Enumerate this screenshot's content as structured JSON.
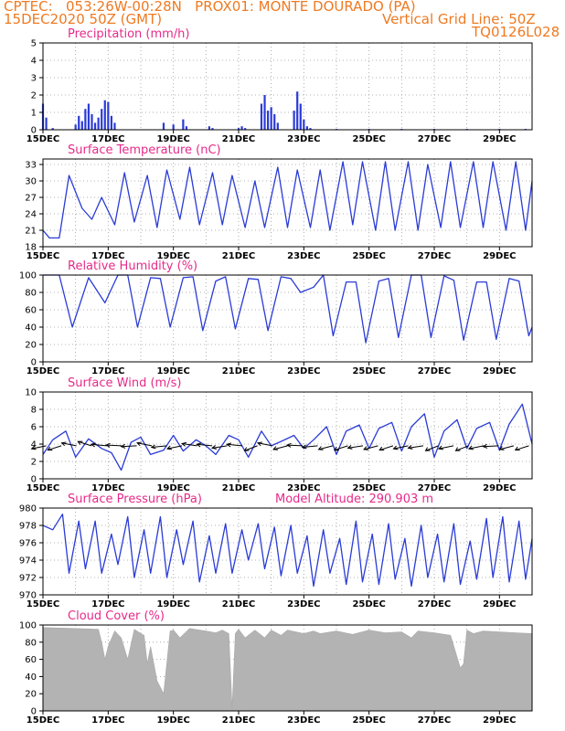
{
  "header": {
    "line1": "CPTEC:   053:26W-00:28N   PROX01: MONTE DOURADO (PA)",
    "line2": "15DEC2020 50Z (GMT)",
    "grid_note": "Vertical Grid Line: 50Z",
    "code": "TQ0126L028"
  },
  "colors": {
    "line": "#2a3bd6",
    "title": "#e62a8a",
    "header": "#ee7a22",
    "cloud": "#b3b3b3"
  },
  "chart_data": [
    {
      "id": "precip",
      "type": "bar",
      "title": "Precipitation (mm/h)",
      "ylim": [
        0,
        5
      ],
      "yticks": [
        0,
        1,
        2,
        3,
        4,
        5
      ],
      "x_labels": [
        "15DEC",
        "17DEC",
        "19DEC",
        "21DEC",
        "23DEC",
        "25DEC",
        "27DEC",
        "29DEC"
      ],
      "x": [
        15.0,
        15.1,
        15.3,
        16.0,
        16.1,
        16.2,
        16.3,
        16.4,
        16.5,
        16.6,
        16.7,
        16.8,
        16.9,
        17.0,
        17.1,
        17.2,
        18.7,
        19.0,
        19.3,
        19.4,
        20.1,
        20.2,
        21.0,
        21.1,
        21.2,
        21.7,
        21.8,
        21.9,
        22.0,
        22.1,
        22.2,
        22.7,
        22.8,
        22.9,
        23.0,
        23.1,
        23.2,
        24.0,
        25.0,
        26.0,
        27.0,
        28.0,
        29.0,
        29.8
      ],
      "values": [
        1.5,
        0.7,
        0.1,
        0.3,
        0.8,
        0.5,
        1.2,
        1.5,
        0.9,
        0.4,
        0.7,
        1.2,
        1.7,
        1.6,
        0.8,
        0.4,
        0.4,
        0.3,
        0.6,
        0.2,
        0.2,
        0.1,
        0.1,
        0.2,
        0.1,
        1.5,
        2.0,
        1.1,
        1.3,
        0.9,
        0.4,
        1.1,
        2.2,
        1.5,
        0.6,
        0.2,
        0.1,
        0.05,
        0.05,
        0.05,
        0.05,
        0.05,
        0.05,
        0.05
      ]
    },
    {
      "id": "temp",
      "type": "line",
      "title": "Surface Temperature (nC)",
      "ylim": [
        18,
        34
      ],
      "yticks": [
        18,
        21,
        24,
        27,
        30,
        33
      ],
      "x_labels": [
        "15DEC",
        "17DEC",
        "19DEC",
        "21DEC",
        "23DEC",
        "25DEC",
        "27DEC",
        "29DEC"
      ],
      "x": [
        15.0,
        15.2,
        15.5,
        15.8,
        16.2,
        16.5,
        16.8,
        17.2,
        17.5,
        17.8,
        18.2,
        18.5,
        18.8,
        19.2,
        19.5,
        19.8,
        20.2,
        20.5,
        20.8,
        21.2,
        21.5,
        21.8,
        22.2,
        22.5,
        22.8,
        23.2,
        23.5,
        23.8,
        24.2,
        24.5,
        24.8,
        25.2,
        25.5,
        25.8,
        26.2,
        26.5,
        26.8,
        27.2,
        27.5,
        27.8,
        28.2,
        28.5,
        28.8,
        29.2,
        29.5,
        29.8,
        30.0
      ],
      "values": [
        21,
        19.6,
        19.6,
        31,
        25,
        23,
        27,
        22,
        31.5,
        22.5,
        31,
        21.5,
        32,
        23,
        32.5,
        22,
        31.5,
        22,
        31,
        21.5,
        30,
        21.5,
        32.5,
        21.5,
        32,
        21.5,
        32,
        21,
        33.5,
        22,
        33.5,
        21,
        33.5,
        21,
        33.5,
        21,
        33,
        21.5,
        33.5,
        21.5,
        33.5,
        21.5,
        33.5,
        21,
        33.5,
        21,
        30
      ]
    },
    {
      "id": "rh",
      "type": "line",
      "title": "Relative Humidity (%)",
      "ylim": [
        0,
        100
      ],
      "yticks": [
        0,
        20,
        40,
        60,
        80,
        100
      ],
      "x_labels": [
        "15DEC",
        "17DEC",
        "19DEC",
        "21DEC",
        "23DEC",
        "25DEC",
        "27DEC",
        "29DEC"
      ],
      "x": [
        15.0,
        15.5,
        15.9,
        16.4,
        16.9,
        17.3,
        17.6,
        17.9,
        18.3,
        18.6,
        18.9,
        19.3,
        19.6,
        19.9,
        20.3,
        20.6,
        20.9,
        21.3,
        21.6,
        21.9,
        22.3,
        22.6,
        22.9,
        23.3,
        23.6,
        23.9,
        24.3,
        24.6,
        24.9,
        25.3,
        25.6,
        25.9,
        26.3,
        26.6,
        26.9,
        27.3,
        27.6,
        27.9,
        28.3,
        28.6,
        28.9,
        29.3,
        29.6,
        29.9,
        30.0
      ],
      "values": [
        100,
        100,
        40,
        97,
        68,
        100,
        100,
        40,
        97,
        96,
        40,
        97,
        98,
        36,
        93,
        98,
        38,
        96,
        95,
        36,
        98,
        96,
        80,
        86,
        100,
        30,
        92,
        92,
        22,
        93,
        96,
        28,
        100,
        100,
        28,
        99,
        94,
        25,
        92,
        92,
        26,
        96,
        93,
        30,
        40
      ]
    },
    {
      "id": "wind",
      "type": "line",
      "title": "Surface Wind (m/s)",
      "ylim": [
        0,
        10
      ],
      "yticks": [
        0,
        2,
        4,
        6,
        8,
        10
      ],
      "x_labels": [
        "15DEC",
        "17DEC",
        "19DEC",
        "21DEC",
        "23DEC",
        "25DEC",
        "27DEC",
        "29DEC"
      ],
      "x": [
        15.0,
        15.3,
        15.7,
        16.0,
        16.4,
        16.8,
        17.1,
        17.4,
        17.7,
        18.0,
        18.3,
        18.7,
        19.0,
        19.3,
        19.7,
        20.0,
        20.3,
        20.7,
        21.0,
        21.3,
        21.7,
        22.0,
        22.3,
        22.7,
        23.0,
        23.3,
        23.7,
        24.0,
        24.3,
        24.7,
        25.0,
        25.3,
        25.7,
        26.0,
        26.3,
        26.7,
        27.0,
        27.3,
        27.7,
        28.0,
        28.3,
        28.7,
        29.0,
        29.3,
        29.7,
        30.0
      ],
      "values": [
        2.8,
        4.5,
        5.5,
        2.5,
        4.6,
        3.5,
        3.0,
        1.0,
        4.2,
        4.8,
        2.8,
        3.3,
        5.0,
        3.2,
        4.5,
        3.8,
        2.8,
        5.0,
        4.5,
        2.5,
        5.5,
        3.8,
        4.3,
        5.0,
        3.5,
        4.5,
        6.0,
        2.8,
        5.5,
        6.2,
        3.5,
        5.8,
        6.5,
        3.2,
        6.0,
        7.5,
        2.5,
        5.5,
        6.8,
        3.5,
        5.8,
        6.5,
        3.3,
        6.3,
        8.6,
        4.0
      ],
      "arrow_dirs": [
        200,
        210,
        160,
        150,
        170,
        175,
        185,
        160,
        190,
        200,
        165,
        170,
        195,
        170,
        215,
        160,
        205,
        175,
        190,
        205,
        210,
        195,
        205,
        210,
        200,
        195,
        215,
        200,
        215,
        200,
        185,
        205,
        210
      ]
    },
    {
      "id": "pres",
      "type": "line",
      "title": "Surface Pressure (hPa)",
      "annotation": "Model Altitude: 290.903 m",
      "ylim": [
        970,
        980
      ],
      "yticks": [
        970,
        972,
        974,
        976,
        978,
        980
      ],
      "x_labels": [
        "15DEC",
        "17DEC",
        "19DEC",
        "21DEC",
        "23DEC",
        "25DEC",
        "27DEC",
        "29DEC"
      ],
      "x": [
        15.0,
        15.3,
        15.6,
        15.8,
        16.1,
        16.3,
        16.6,
        16.8,
        17.1,
        17.3,
        17.6,
        17.8,
        18.1,
        18.3,
        18.6,
        18.8,
        19.1,
        19.3,
        19.6,
        19.8,
        20.1,
        20.3,
        20.6,
        20.8,
        21.1,
        21.3,
        21.6,
        21.8,
        22.1,
        22.3,
        22.6,
        22.8,
        23.1,
        23.3,
        23.6,
        23.8,
        24.1,
        24.3,
        24.6,
        24.8,
        25.1,
        25.3,
        25.6,
        25.8,
        26.1,
        26.3,
        26.6,
        26.8,
        27.1,
        27.3,
        27.6,
        27.8,
        28.1,
        28.3,
        28.6,
        28.8,
        29.1,
        29.3,
        29.6,
        29.8,
        30.0
      ],
      "values": [
        978,
        977.5,
        979.3,
        972.5,
        978.5,
        973,
        978.5,
        972.5,
        977,
        973.5,
        979,
        972,
        977.5,
        972.5,
        979,
        972,
        977.5,
        973.5,
        978.5,
        971.5,
        976.8,
        972.5,
        978.2,
        972.5,
        977.5,
        974,
        978.2,
        973,
        977.8,
        972.2,
        978,
        972.5,
        976.8,
        971,
        977.5,
        972.5,
        976.5,
        971.2,
        978.5,
        971.5,
        977,
        971.2,
        978.2,
        971.8,
        976.5,
        971,
        978,
        972,
        977,
        971.5,
        978.2,
        971.2,
        976.2,
        971.8,
        978.8,
        972,
        979,
        971.5,
        978.5,
        971.8,
        976.5
      ]
    },
    {
      "id": "cloud",
      "type": "area",
      "title": "Cloud Cover (%)",
      "ylim": [
        0,
        100
      ],
      "yticks": [
        0,
        20,
        40,
        60,
        80,
        100
      ],
      "x_labels": [
        "15DEC",
        "17DEC",
        "19DEC",
        "21DEC",
        "23DEC",
        "25DEC",
        "27DEC",
        "29DEC"
      ],
      "x": [
        15.0,
        16.0,
        16.7,
        16.8,
        16.9,
        17.0,
        17.2,
        17.4,
        17.6,
        17.8,
        18.0,
        18.1,
        18.2,
        18.3,
        18.5,
        18.7,
        18.9,
        19.0,
        19.2,
        19.5,
        19.8,
        20.0,
        20.3,
        20.5,
        20.7,
        20.8,
        20.9,
        21.0,
        21.2,
        21.5,
        21.8,
        22.0,
        22.3,
        22.5,
        23.0,
        23.3,
        23.5,
        24.0,
        24.5,
        25.0,
        25.5,
        26.0,
        26.3,
        26.5,
        27.0,
        27.5,
        27.8,
        27.9,
        28.0,
        28.2,
        28.5,
        29.0,
        29.5,
        30.0
      ],
      "values": [
        97,
        96,
        95,
        80,
        60,
        75,
        93,
        85,
        60,
        95,
        90,
        88,
        55,
        75,
        35,
        20,
        93,
        94,
        85,
        96,
        94,
        93,
        91,
        94,
        90,
        3,
        90,
        95,
        85,
        94,
        85,
        94,
        88,
        94,
        90,
        93,
        90,
        93,
        89,
        94,
        91,
        92,
        85,
        93,
        91,
        88,
        50,
        55,
        94,
        90,
        93,
        92,
        91,
        90
      ]
    }
  ]
}
